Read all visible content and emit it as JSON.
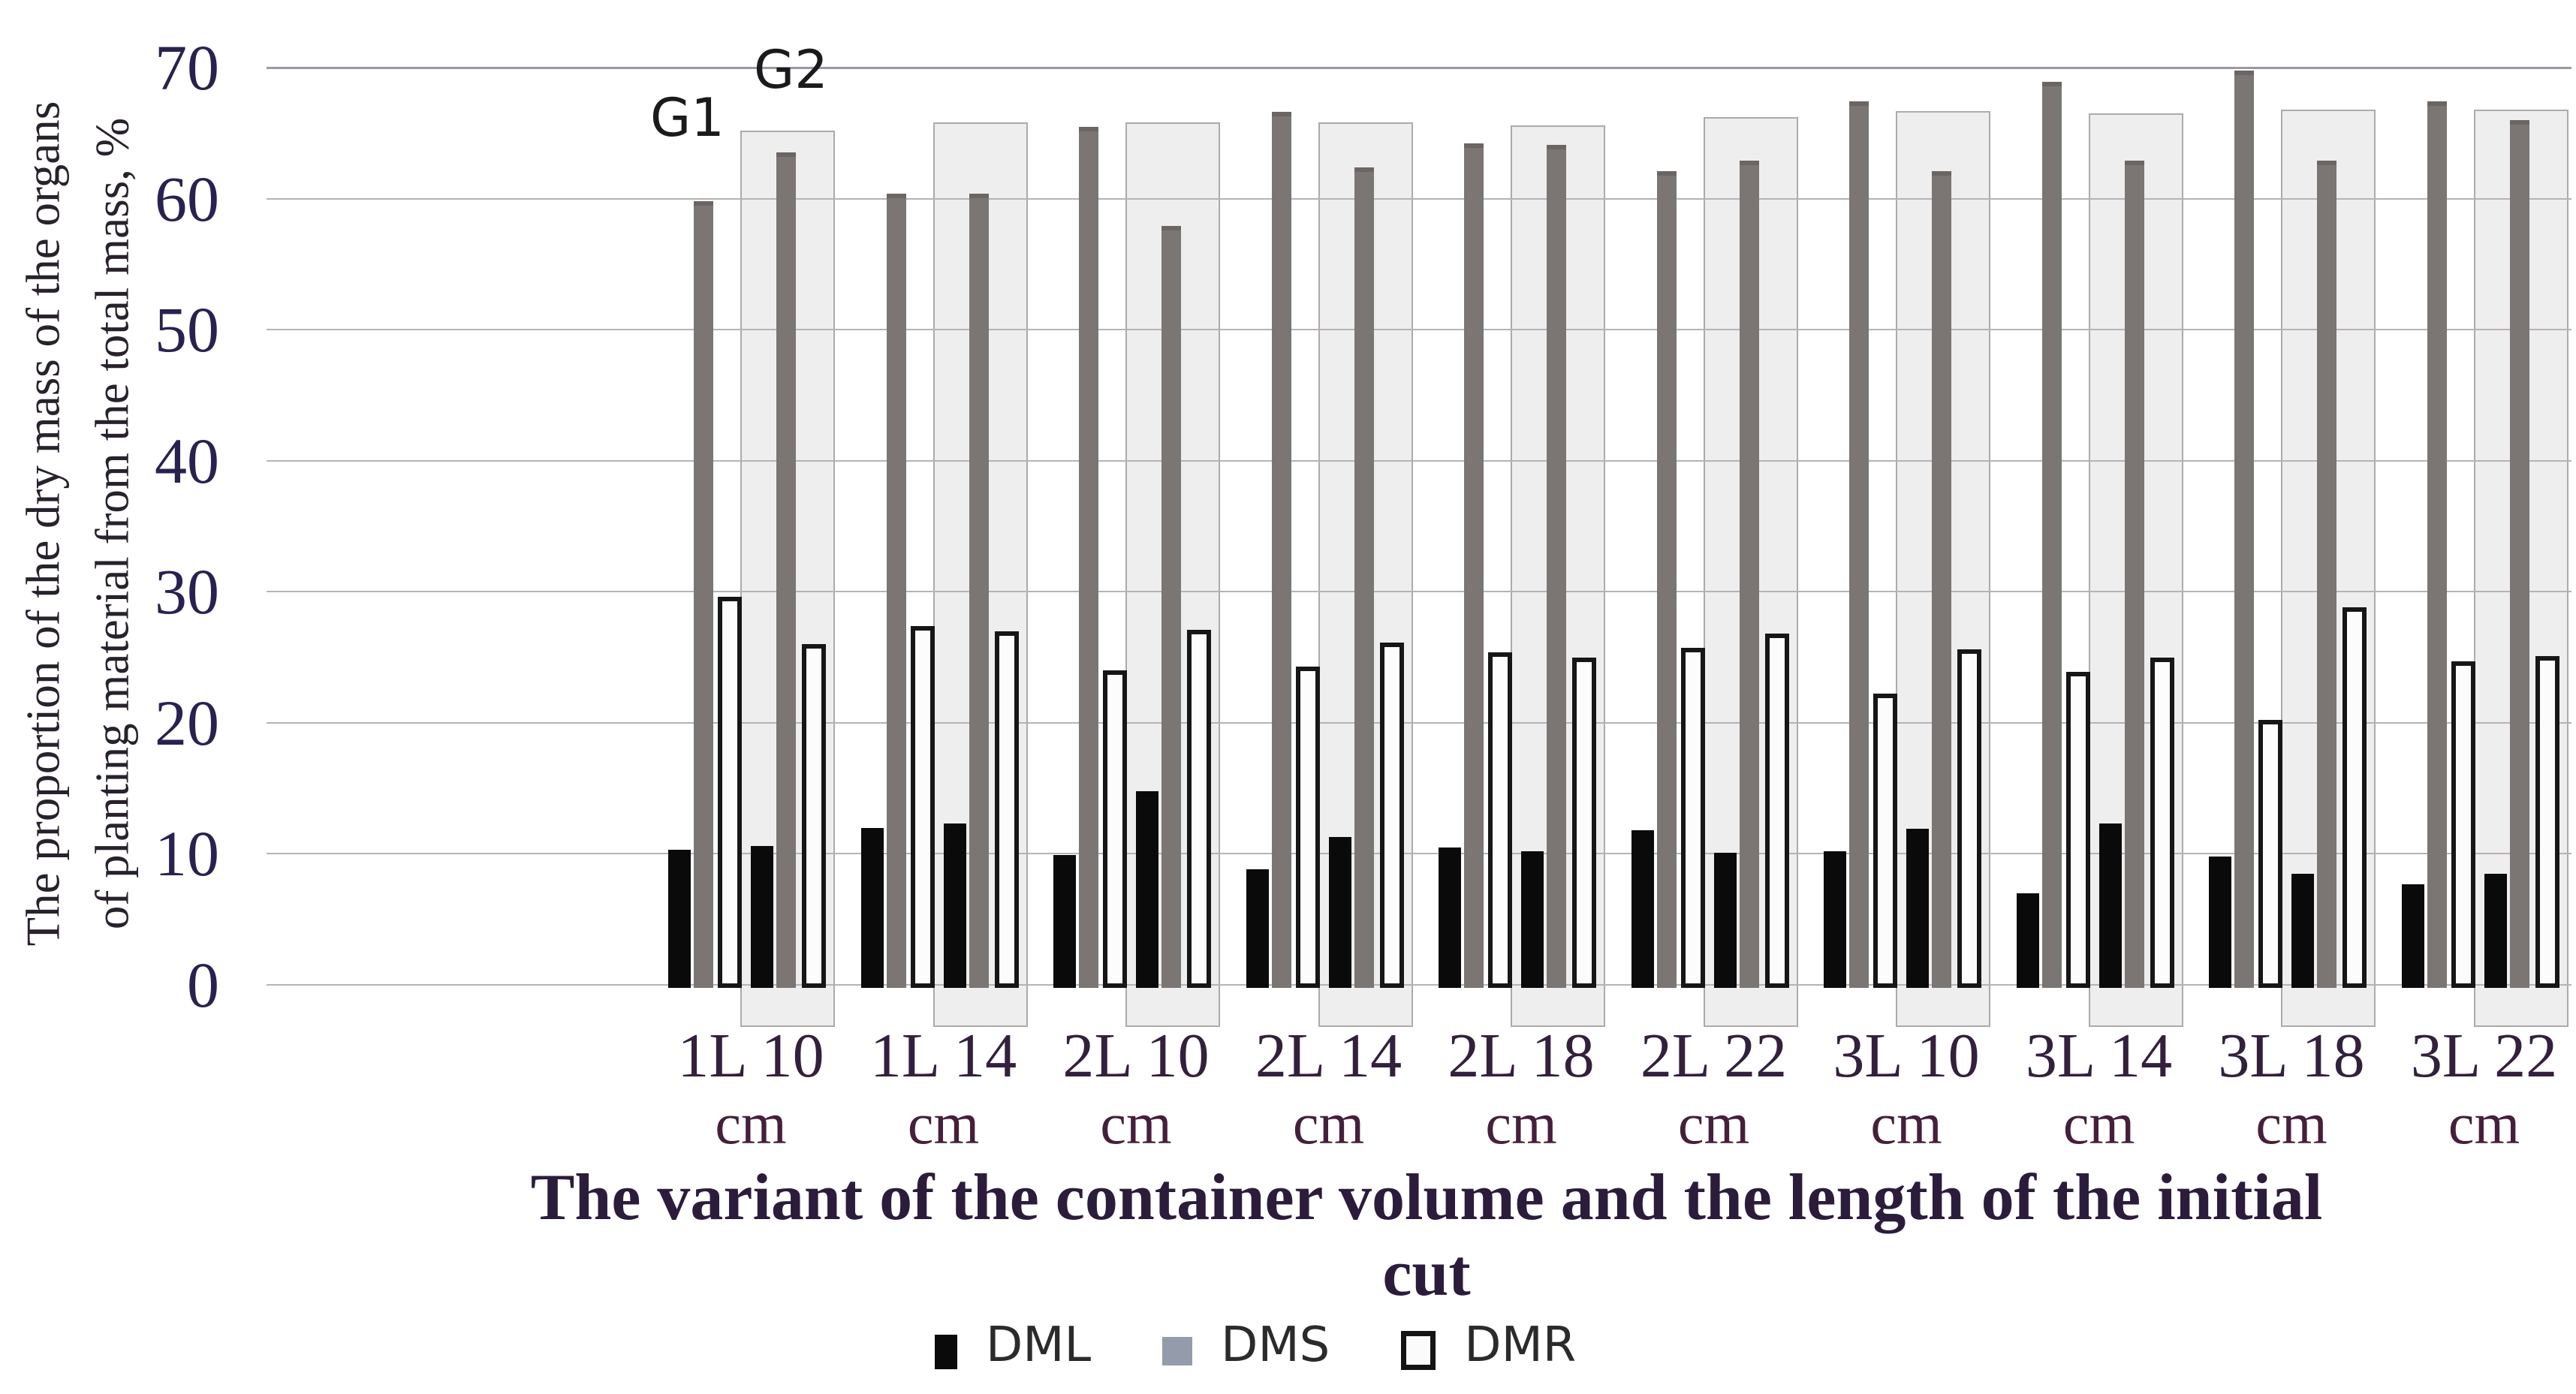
{
  "chart_data": {
    "type": "bar",
    "title": "",
    "ylabel_line1": "The proportion of the dry mass of the organs",
    "ylabel_line2": "of planting material  from the total mass, %",
    "xlabel": "The variant of the container volume  and the length of the initial cut",
    "ylim": [
      0,
      70
    ],
    "y_ticks": [
      70,
      60,
      50,
      40,
      30,
      20,
      10,
      0
    ],
    "grid": "horizontal",
    "legend_position": "bottom-center",
    "group_labels": {
      "g1": "G1",
      "g2": "G2"
    },
    "category_unit": "cm",
    "series_names": [
      "DML",
      "DMS",
      "DMR"
    ],
    "categories": [
      {
        "label": "1L 10",
        "g1": {
          "DML": 10.3,
          "DMS": 59.8,
          "DMR": 29.6
        },
        "g2": {
          "DML": 10.6,
          "DMS": 63.5,
          "DMR": 26.0
        },
        "g2_box_top": 65.2
      },
      {
        "label": "1L 14",
        "g1": {
          "DML": 12.0,
          "DMS": 60.4,
          "DMR": 27.4
        },
        "g2": {
          "DML": 12.3,
          "DMS": 60.4,
          "DMR": 27.0
        },
        "g2_box_top": 65.8
      },
      {
        "label": "2L 10",
        "g1": {
          "DML": 9.9,
          "DMS": 65.5,
          "DMR": 24.0
        },
        "g2": {
          "DML": 14.8,
          "DMS": 57.9,
          "DMR": 27.1
        },
        "g2_box_top": 65.8
      },
      {
        "label": "2L 14",
        "g1": {
          "DML": 8.8,
          "DMS": 66.6,
          "DMR": 24.3
        },
        "g2": {
          "DML": 11.3,
          "DMS": 62.4,
          "DMR": 26.1
        },
        "g2_box_top": 65.8
      },
      {
        "label": "2L 18",
        "g1": {
          "DML": 10.5,
          "DMS": 64.2,
          "DMR": 25.4
        },
        "g2": {
          "DML": 10.2,
          "DMS": 64.1,
          "DMR": 25.0
        },
        "g2_box_top": 65.6
      },
      {
        "label": "2L 22",
        "g1": {
          "DML": 11.8,
          "DMS": 62.1,
          "DMR": 25.7
        },
        "g2": {
          "DML": 10.1,
          "DMS": 62.9,
          "DMR": 26.8
        },
        "g2_box_top": 66.2
      },
      {
        "label": "3L 10",
        "g1": {
          "DML": 10.2,
          "DMS": 67.4,
          "DMR": 22.2
        },
        "g2": {
          "DML": 11.9,
          "DMS": 62.1,
          "DMR": 25.6
        },
        "g2_box_top": 66.7
      },
      {
        "label": "3L 14",
        "g1": {
          "DML": 7.0,
          "DMS": 68.9,
          "DMR": 23.9
        },
        "g2": {
          "DML": 12.3,
          "DMS": 62.9,
          "DMR": 25.0
        },
        "g2_box_top": 66.5
      },
      {
        "label": "3L 18",
        "g1": {
          "DML": 9.8,
          "DMS": 69.8,
          "DMR": 20.2
        },
        "g2": {
          "DML": 8.5,
          "DMS": 62.9,
          "DMR": 28.8
        },
        "g2_box_top": 66.8
      },
      {
        "label": "3L 22",
        "g1": {
          "DML": 7.7,
          "DMS": 67.4,
          "DMR": 24.7
        },
        "g2": {
          "DML": 8.5,
          "DMS": 66.0,
          "DMR": 25.1
        },
        "g2_box_top": 66.8
      }
    ],
    "legend": [
      {
        "label": "DML",
        "color": "#0a0a0a"
      },
      {
        "label": "DMS",
        "color": "#949baa"
      },
      {
        "label": "DMR",
        "color": "#fcfcfc",
        "border": "#141414"
      }
    ],
    "colors": {
      "DML": "#0a0a0a",
      "DMS": "#7b7673",
      "DMR_fill": "#fcfcfc",
      "DMR_border": "#161616",
      "g2_box_fill": "#efeeee",
      "g2_box_border": "#aeaaaa",
      "gridline": "#b6b1ba",
      "tick_text": "#2a2150",
      "axis_title_text": "#2c1c3c"
    }
  }
}
